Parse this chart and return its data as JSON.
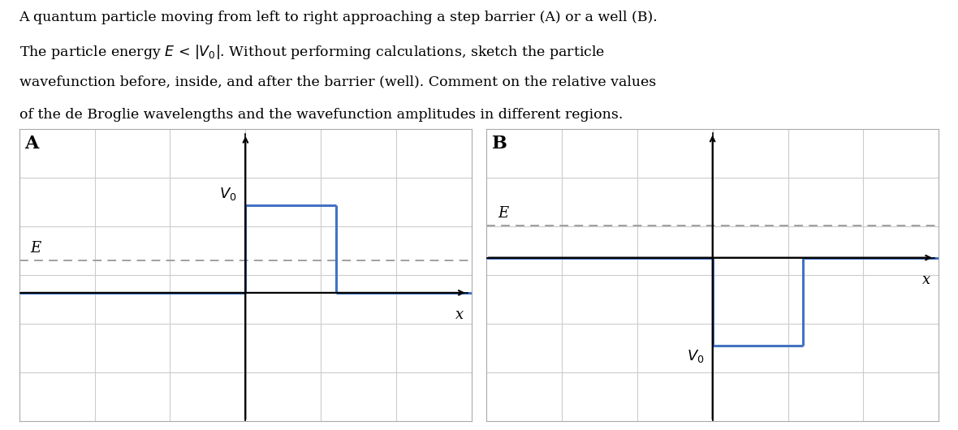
{
  "panel_A_label": "A",
  "panel_B_label": "B",
  "barrier_color": "#4472C4",
  "dashed_color": "#999999",
  "background_color": "#ffffff",
  "plot_bg_color": "#ffffff",
  "grid_color": "#cccccc",
  "E_label": "E",
  "V0_label_A": "$V_0$",
  "V0_label_B": "$V_0$",
  "x_label": "x",
  "xlim": [
    -4,
    4
  ],
  "ylim_A": [
    -2.2,
    2.8
  ],
  "ylim_B": [
    -2.8,
    2.2
  ],
  "barrier_x_start": 0,
  "barrier_x_end": 1.6,
  "barrier_height_A": 1.5,
  "well_depth_B": -1.5,
  "E_level_A": 0.55,
  "E_level_B": 0.55,
  "zero_level": 0,
  "lw": 2.2,
  "title_lines": [
    "A quantum particle moving from left to right approaching a step barrier (A) or a well (B).",
    "The particle energy $E$ < $|V_0|$. Without performing calculations, sketch the particle",
    "wavefunction before, inside, and after the barrier (well). Comment on the relative values",
    "of the de Broglie wavelengths and the wavefunction amplitudes in different regions."
  ]
}
